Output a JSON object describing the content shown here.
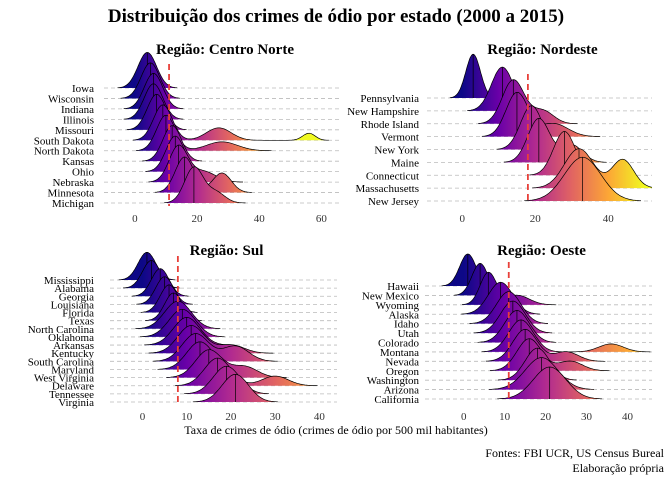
{
  "title": "Distribuição dos crimes de ódio por estado (2000 a 2015)",
  "xlabel": "Taxa de crimes de ódio (crimes de ódio por 500 mil habitantes)",
  "caption": [
    "Fontes: FBI UCR, US Census Bureal",
    "Elaboração própria"
  ],
  "colors": {
    "gradient": [
      "#0d0887",
      "#6a00a8",
      "#b12a90",
      "#e16462",
      "#fca636",
      "#f0f921"
    ],
    "reference_line": "#e8403a",
    "grid": "#bbbbbb",
    "ridge_outline": "#000000"
  },
  "chart_data": [
    {
      "type": "ridgeline",
      "title": "Região: Centro Norte",
      "xlim": [
        -8,
        66
      ],
      "xticks": [
        0,
        20,
        40,
        60
      ],
      "reference_x": 11,
      "states": [
        {
          "name": "Iowa",
          "components": [
            [
              4,
              3,
              1
            ]
          ]
        },
        {
          "name": "Wisconsin",
          "components": [
            [
              5,
              3,
              1
            ]
          ]
        },
        {
          "name": "Indiana",
          "components": [
            [
              6,
              3,
              1
            ]
          ]
        },
        {
          "name": "Illinois",
          "components": [
            [
              6,
              3,
              1
            ]
          ]
        },
        {
          "name": "Missouri",
          "components": [
            [
              7,
              3,
              1
            ]
          ]
        },
        {
          "name": "South Dakota",
          "components": [
            [
              9,
              3,
              1
            ],
            [
              27,
              4,
              0.35
            ],
            [
              56,
              2,
              0.2
            ]
          ]
        },
        {
          "name": "North Dakota",
          "components": [
            [
              10,
              3,
              1
            ],
            [
              28,
              5,
              0.25
            ]
          ]
        },
        {
          "name": "Kansas",
          "components": [
            [
              12,
              3,
              1
            ]
          ]
        },
        {
          "name": "Ohio",
          "components": [
            [
              13,
              3,
              1
            ]
          ]
        },
        {
          "name": "Nebraska",
          "components": [
            [
              14,
              3,
              1
            ],
            [
              22,
              4,
              0.3
            ]
          ]
        },
        {
          "name": "Minnesota",
          "components": [
            [
              16,
              3,
              1
            ],
            [
              28,
              3,
              0.55
            ]
          ]
        },
        {
          "name": "Michigan",
          "components": [
            [
              19,
              3,
              1
            ],
            [
              26,
              3,
              0.3
            ]
          ]
        }
      ]
    },
    {
      "type": "ridgeline",
      "title": "Região: Nordeste",
      "xlim": [
        -8,
        52
      ],
      "xticks": [
        0,
        20,
        40
      ],
      "reference_x": 18,
      "states": [
        {
          "name": "Pennsylvania",
          "components": [
            [
              3,
              2,
              1
            ]
          ]
        },
        {
          "name": "New Hampshire",
          "components": [
            [
              11,
              3,
              1
            ]
          ]
        },
        {
          "name": "Rhode Island",
          "components": [
            [
              14,
              3,
              1
            ],
            [
              22,
              3,
              0.3
            ]
          ]
        },
        {
          "name": "Vermont",
          "components": [
            [
              15,
              3,
              1
            ],
            [
              25,
              4,
              0.3
            ]
          ]
        },
        {
          "name": "New York",
          "components": [
            [
              19,
              3,
              1
            ]
          ]
        },
        {
          "name": "Maine",
          "components": [
            [
              21,
              3,
              1
            ],
            [
              30,
              3,
              0.4
            ]
          ]
        },
        {
          "name": "Connecticut",
          "components": [
            [
              28,
              3,
              1
            ]
          ]
        },
        {
          "name": "Massachusetts",
          "components": [
            [
              32,
              4,
              0.9
            ],
            [
              44,
              3,
              0.65
            ]
          ]
        },
        {
          "name": "New Jersey",
          "components": [
            [
              33,
              5,
              1
            ]
          ]
        }
      ]
    },
    {
      "type": "ridgeline",
      "title": "Região: Sul",
      "xlim": [
        -6,
        44
      ],
      "xticks": [
        0,
        10,
        20,
        30,
        40
      ],
      "reference_x": 8,
      "states": [
        {
          "name": "Mississippi",
          "components": [
            [
              1,
              2,
              1
            ]
          ]
        },
        {
          "name": "Alabama",
          "components": [
            [
              2,
              2,
              1
            ]
          ]
        },
        {
          "name": "Georgia",
          "components": [
            [
              4,
              2,
              1
            ]
          ]
        },
        {
          "name": "Louisiana",
          "components": [
            [
              5,
              2,
              1
            ]
          ]
        },
        {
          "name": "Florida",
          "components": [
            [
              6,
              2,
              1
            ]
          ]
        },
        {
          "name": "Texas",
          "components": [
            [
              7,
              2,
              1
            ]
          ]
        },
        {
          "name": "North Carolina",
          "components": [
            [
              8,
              3,
              1
            ]
          ]
        },
        {
          "name": "Oklahoma",
          "components": [
            [
              9,
              3,
              1
            ]
          ]
        },
        {
          "name": "Arkansas",
          "components": [
            [
              10,
              3,
              1
            ]
          ]
        },
        {
          "name": "Kentucky",
          "components": [
            [
              11,
              3,
              1
            ],
            [
              20,
              3,
              0.3
            ]
          ]
        },
        {
          "name": "South Carolina",
          "components": [
            [
              12,
              3,
              1
            ],
            [
              21,
              3,
              0.55
            ]
          ]
        },
        {
          "name": "Maryland",
          "components": [
            [
              13,
              3,
              1
            ]
          ]
        },
        {
          "name": "West Virginia",
          "components": [
            [
              15,
              3,
              1
            ],
            [
              23,
              3,
              0.4
            ]
          ]
        },
        {
          "name": "Delaware",
          "components": [
            [
              17,
              3,
              1
            ],
            [
              30,
              3,
              0.35
            ]
          ]
        },
        {
          "name": "Tennessee",
          "components": [
            [
              19,
              3,
              1
            ]
          ]
        },
        {
          "name": "Virginia",
          "components": [
            [
              21,
              3,
              1
            ]
          ]
        }
      ]
    },
    {
      "type": "ridgeline",
      "title": "Região: Oeste",
      "xlim": [
        -8,
        46
      ],
      "xticks": [
        0,
        10,
        20,
        30,
        40
      ],
      "reference_x": 11,
      "states": [
        {
          "name": "Hawaii",
          "components": [
            [
              1,
              2,
              1
            ]
          ]
        },
        {
          "name": "New Mexico",
          "components": [
            [
              4,
              2,
              1
            ]
          ]
        },
        {
          "name": "Wyoming",
          "components": [
            [
              6,
              2,
              1
            ],
            [
              13,
              3,
              0.3
            ]
          ]
        },
        {
          "name": "Alaska",
          "components": [
            [
              9,
              3,
              1
            ]
          ]
        },
        {
          "name": "Idaho",
          "components": [
            [
              11,
              3,
              1
            ]
          ]
        },
        {
          "name": "Utah",
          "components": [
            [
              12,
              3,
              1
            ]
          ]
        },
        {
          "name": "Colorado",
          "components": [
            [
              13,
              3,
              1
            ]
          ]
        },
        {
          "name": "Montana",
          "components": [
            [
              14,
              3,
              1
            ],
            [
              36,
              3,
              0.25
            ]
          ]
        },
        {
          "name": "Nevada",
          "components": [
            [
              15,
              3,
              1
            ],
            [
              25,
              3,
              0.3
            ]
          ]
        },
        {
          "name": "Oregon",
          "components": [
            [
              16,
              3,
              1
            ],
            [
              26,
              3,
              0.3
            ]
          ]
        },
        {
          "name": "Washington",
          "components": [
            [
              18,
              3,
              1
            ]
          ]
        },
        {
          "name": "Arizona",
          "components": [
            [
              19,
              4,
              1
            ]
          ]
        },
        {
          "name": "California",
          "components": [
            [
              21,
              4,
              1
            ]
          ]
        }
      ]
    }
  ]
}
